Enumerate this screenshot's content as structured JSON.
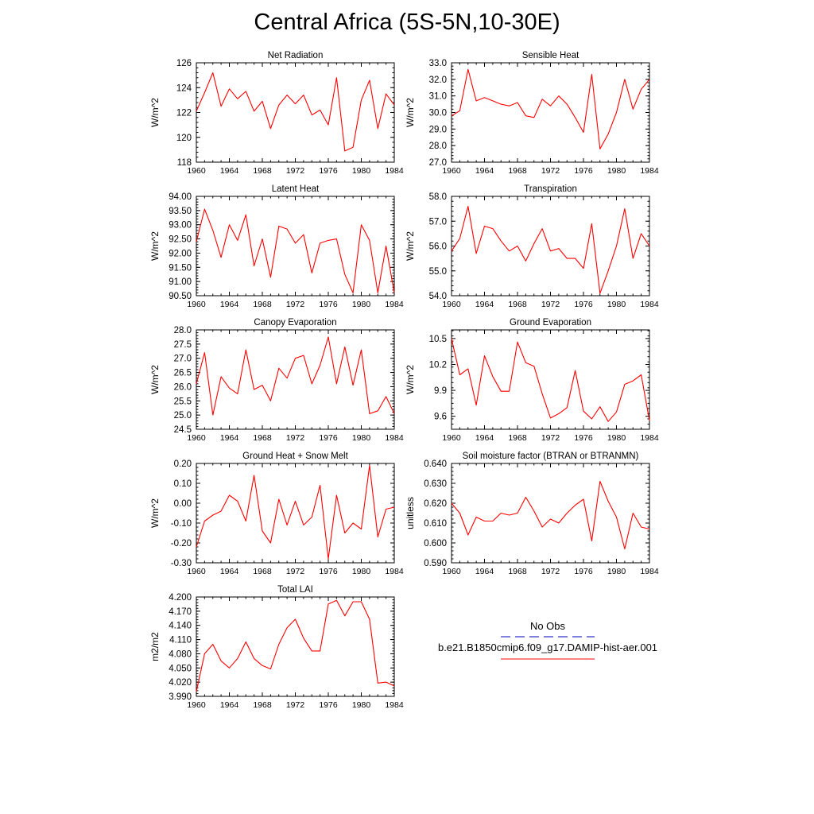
{
  "page": {
    "title": "Central Africa (5S-5N,10-30E)"
  },
  "legend": {
    "obs_label": "No Obs",
    "model_label": "b.e21.B1850cmip6.f09_g17.DAMIP-hist-aer.001",
    "obs_color": "#3333cc",
    "model_color": "#ff0000"
  },
  "chart_data": [
    {
      "type": "line",
      "title": "Net Radiation",
      "ylabel": "W/m^2",
      "xlim": [
        1960,
        1984
      ],
      "ylim": [
        118,
        126
      ],
      "xticks": [
        1960,
        1964,
        1968,
        1972,
        1976,
        1980,
        1984
      ],
      "yticks": [
        118,
        120,
        122,
        124,
        126
      ],
      "ytick_decimals": 0,
      "x": [
        1960,
        1961,
        1962,
        1963,
        1964,
        1965,
        1966,
        1967,
        1968,
        1969,
        1970,
        1971,
        1972,
        1973,
        1974,
        1975,
        1976,
        1977,
        1978,
        1979,
        1980,
        1981,
        1982,
        1983,
        1984
      ],
      "series": [
        {
          "values": [
            122.1,
            123.6,
            125.2,
            122.5,
            123.9,
            123.1,
            123.7,
            122.1,
            122.9,
            120.7,
            122.6,
            123.4,
            122.7,
            123.4,
            121.8,
            122.2,
            121.0,
            124.8,
            118.9,
            119.2,
            123.0,
            124.6,
            120.7,
            123.5,
            122.6
          ]
        }
      ]
    },
    {
      "type": "line",
      "title": "Sensible Heat",
      "ylabel": "W/m^2",
      "xlim": [
        1960,
        1984
      ],
      "ylim": [
        27.0,
        33.0
      ],
      "xticks": [
        1960,
        1964,
        1968,
        1972,
        1976,
        1980,
        1984
      ],
      "yticks": [
        27.0,
        28.0,
        29.0,
        30.0,
        31.0,
        32.0,
        33.0
      ],
      "ytick_decimals": 1,
      "x": [
        1960,
        1961,
        1962,
        1963,
        1964,
        1965,
        1966,
        1967,
        1968,
        1969,
        1970,
        1971,
        1972,
        1973,
        1974,
        1975,
        1976,
        1977,
        1978,
        1979,
        1980,
        1981,
        1982,
        1983,
        1984
      ],
      "series": [
        {
          "values": [
            29.8,
            30.1,
            32.6,
            30.7,
            30.9,
            30.7,
            30.5,
            30.4,
            30.6,
            29.8,
            29.7,
            30.8,
            30.4,
            31.0,
            30.5,
            29.7,
            28.8,
            32.3,
            27.8,
            28.7,
            30.0,
            32.0,
            30.2,
            31.4,
            32.0
          ]
        }
      ]
    },
    {
      "type": "line",
      "title": "Latent Heat",
      "ylabel": "W/m^2",
      "xlim": [
        1960,
        1984
      ],
      "ylim": [
        90.5,
        94.0
      ],
      "xticks": [
        1960,
        1964,
        1968,
        1972,
        1976,
        1980,
        1984
      ],
      "yticks": [
        90.5,
        91.0,
        91.5,
        92.0,
        92.5,
        93.0,
        93.5,
        94.0
      ],
      "ytick_decimals": 2,
      "x": [
        1960,
        1961,
        1962,
        1963,
        1964,
        1965,
        1966,
        1967,
        1968,
        1969,
        1970,
        1971,
        1972,
        1973,
        1974,
        1975,
        1976,
        1977,
        1978,
        1979,
        1980,
        1981,
        1982,
        1983,
        1984
      ],
      "series": [
        {
          "values": [
            92.4,
            93.55,
            92.8,
            91.85,
            93.0,
            92.45,
            93.35,
            91.55,
            92.5,
            91.15,
            92.95,
            92.85,
            92.35,
            92.65,
            91.3,
            92.35,
            92.45,
            92.5,
            91.25,
            90.6,
            93.0,
            92.45,
            90.6,
            92.25,
            90.6
          ]
        }
      ]
    },
    {
      "type": "line",
      "title": "Transpiration",
      "ylabel": "W/m^2",
      "xlim": [
        1960,
        1984
      ],
      "ylim": [
        54.0,
        58.0
      ],
      "xticks": [
        1960,
        1964,
        1968,
        1972,
        1976,
        1980,
        1984
      ],
      "yticks": [
        54.0,
        55.0,
        56.0,
        57.0,
        58.0
      ],
      "ytick_decimals": 1,
      "x": [
        1960,
        1961,
        1962,
        1963,
        1964,
        1965,
        1966,
        1967,
        1968,
        1969,
        1970,
        1971,
        1972,
        1973,
        1974,
        1975,
        1976,
        1977,
        1978,
        1979,
        1980,
        1981,
        1982,
        1983,
        1984
      ],
      "series": [
        {
          "values": [
            55.8,
            56.3,
            57.6,
            55.7,
            56.8,
            56.7,
            56.2,
            55.8,
            56.0,
            55.4,
            56.1,
            56.7,
            55.8,
            55.9,
            55.5,
            55.5,
            55.1,
            56.9,
            54.1,
            55.0,
            56.0,
            57.5,
            55.5,
            56.5,
            56.0
          ]
        }
      ]
    },
    {
      "type": "line",
      "title": "Canopy Evaporation",
      "ylabel": "W/m^2",
      "xlim": [
        1960,
        1984
      ],
      "ylim": [
        24.5,
        28.0
      ],
      "xticks": [
        1960,
        1964,
        1968,
        1972,
        1976,
        1980,
        1984
      ],
      "yticks": [
        24.5,
        25.0,
        25.5,
        26.0,
        26.5,
        27.0,
        27.5,
        28.0
      ],
      "ytick_decimals": 1,
      "x": [
        1960,
        1961,
        1962,
        1963,
        1964,
        1965,
        1966,
        1967,
        1968,
        1969,
        1970,
        1971,
        1972,
        1973,
        1974,
        1975,
        1976,
        1977,
        1978,
        1979,
        1980,
        1981,
        1982,
        1983,
        1984
      ],
      "series": [
        {
          "values": [
            26.1,
            27.2,
            25.0,
            26.35,
            25.95,
            25.75,
            27.3,
            25.9,
            26.05,
            25.5,
            26.65,
            26.3,
            27.0,
            27.1,
            26.1,
            26.75,
            27.75,
            26.1,
            27.4,
            26.05,
            27.3,
            25.05,
            25.15,
            25.65,
            25.05
          ]
        }
      ]
    },
    {
      "type": "line",
      "title": "Ground Evaporation",
      "ylabel": "W/m^2",
      "xlim": [
        1960,
        1984
      ],
      "ylim": [
        9.45,
        10.6
      ],
      "xticks": [
        1960,
        1964,
        1968,
        1972,
        1976,
        1980,
        1984
      ],
      "yticks": [
        9.6,
        9.9,
        10.2,
        10.5
      ],
      "ytick_decimals": 1,
      "x": [
        1960,
        1961,
        1962,
        1963,
        1964,
        1965,
        1966,
        1967,
        1968,
        1969,
        1970,
        1971,
        1972,
        1973,
        1974,
        1975,
        1976,
        1977,
        1978,
        1979,
        1980,
        1981,
        1982,
        1983,
        1984
      ],
      "series": [
        {
          "values": [
            10.5,
            10.08,
            10.15,
            9.73,
            10.3,
            10.06,
            9.89,
            9.89,
            10.46,
            10.22,
            10.18,
            9.86,
            9.58,
            9.63,
            9.7,
            10.13,
            9.66,
            9.57,
            9.71,
            9.54,
            9.65,
            9.97,
            10.01,
            10.08,
            9.55
          ]
        }
      ]
    },
    {
      "type": "line",
      "title": "Ground Heat + Snow Melt",
      "ylabel": "W/m^2",
      "xlim": [
        1960,
        1984
      ],
      "ylim": [
        -0.3,
        0.2
      ],
      "xticks": [
        1960,
        1964,
        1968,
        1972,
        1976,
        1980,
        1984
      ],
      "yticks": [
        -0.3,
        -0.2,
        -0.1,
        0.0,
        0.1,
        0.2
      ],
      "ytick_decimals": 2,
      "x": [
        1960,
        1961,
        1962,
        1963,
        1964,
        1965,
        1966,
        1967,
        1968,
        1969,
        1970,
        1971,
        1972,
        1973,
        1974,
        1975,
        1976,
        1977,
        1978,
        1979,
        1980,
        1981,
        1982,
        1983,
        1984
      ],
      "series": [
        {
          "values": [
            -0.22,
            -0.09,
            -0.06,
            -0.04,
            0.04,
            0.01,
            -0.09,
            0.14,
            -0.14,
            -0.2,
            0.02,
            -0.11,
            0.01,
            -0.11,
            -0.07,
            0.09,
            -0.28,
            0.04,
            -0.15,
            -0.1,
            -0.13,
            0.19,
            -0.17,
            -0.03,
            -0.02
          ]
        }
      ]
    },
    {
      "type": "line",
      "title": "Soil moisture factor (BTRAN or BTRANMN)",
      "ylabel": "unitless",
      "xlim": [
        1960,
        1984
      ],
      "ylim": [
        0.59,
        0.64
      ],
      "xticks": [
        1960,
        1964,
        1968,
        1972,
        1976,
        1980,
        1984
      ],
      "yticks": [
        0.59,
        0.6,
        0.61,
        0.62,
        0.63,
        0.64
      ],
      "ytick_decimals": 3,
      "x": [
        1960,
        1961,
        1962,
        1963,
        1964,
        1965,
        1966,
        1967,
        1968,
        1969,
        1970,
        1971,
        1972,
        1973,
        1974,
        1975,
        1976,
        1977,
        1978,
        1979,
        1980,
        1981,
        1982,
        1983,
        1984
      ],
      "series": [
        {
          "values": [
            0.62,
            0.615,
            0.604,
            0.613,
            0.611,
            0.611,
            0.615,
            0.614,
            0.615,
            0.623,
            0.616,
            0.608,
            0.612,
            0.61,
            0.615,
            0.619,
            0.622,
            0.601,
            0.631,
            0.621,
            0.613,
            0.597,
            0.615,
            0.608,
            0.607
          ]
        }
      ]
    },
    {
      "type": "line",
      "title": "Total LAI",
      "ylabel": "m2/m2",
      "xlim": [
        1960,
        1984
      ],
      "ylim": [
        3.99,
        4.2
      ],
      "xticks": [
        1960,
        1964,
        1968,
        1972,
        1976,
        1980,
        1984
      ],
      "yticks": [
        3.99,
        4.02,
        4.05,
        4.08,
        4.11,
        4.14,
        4.17,
        4.2
      ],
      "ytick_decimals": 3,
      "x": [
        1960,
        1961,
        1962,
        1963,
        1964,
        1965,
        1966,
        1967,
        1968,
        1969,
        1970,
        1971,
        1972,
        1973,
        1974,
        1975,
        1976,
        1977,
        1978,
        1979,
        1980,
        1981,
        1982,
        1983,
        1984
      ],
      "series": [
        {
          "values": [
            4.0,
            4.08,
            4.1,
            4.065,
            4.05,
            4.07,
            4.105,
            4.07,
            4.055,
            4.048,
            4.1,
            4.135,
            4.153,
            4.113,
            4.086,
            4.086,
            4.185,
            4.193,
            4.16,
            4.19,
            4.19,
            4.153,
            4.018,
            4.02,
            4.012
          ]
        }
      ]
    }
  ]
}
